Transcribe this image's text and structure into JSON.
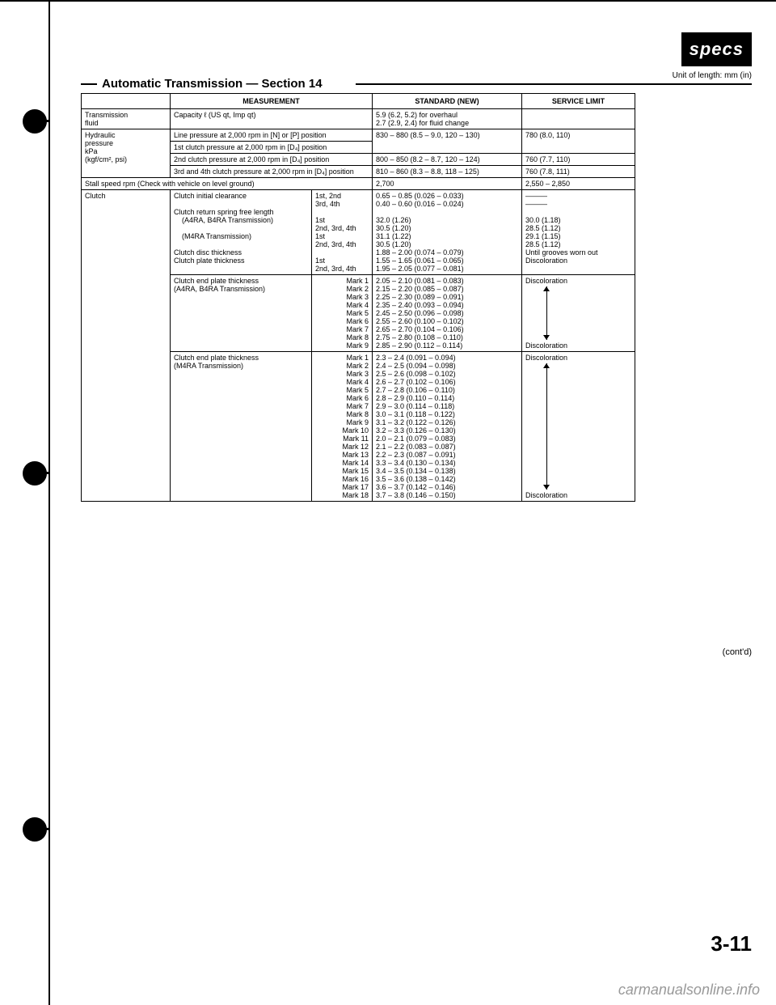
{
  "badge": "specs",
  "unit_label": "Unit of length: mm (in)",
  "section_title": "Automatic Transmission — Section 14",
  "header": {
    "measurement": "MEASUREMENT",
    "standard": "STANDARD (NEW)",
    "service_limit": "SERVICE LIMIT"
  },
  "rows": {
    "trans_fluid_label": "Transmission\nfluid",
    "trans_fluid_meas": "Capacity   ℓ (US qt, Imp qt)",
    "trans_fluid_std": "5.9 (6.2, 5.2) for overhaul\n2.7 (2.9, 2.4) for fluid change",
    "hyd_label": "Hydraulic\npressure\nkPa\n(kgf/cm², psi)",
    "hyd_line_meas": "Line pressure at 2,000 rpm in [N] or [P] position",
    "hyd_line_std": "830 – 880 (8.5 – 9.0, 120 – 130)",
    "hyd_line_lim": "780 (8.0, 110)",
    "hyd_1st_meas": "1st clutch pressure at 2,000 rpm in [D₄] position",
    "hyd_2nd_meas": "2nd clutch pressure at 2,000 rpm in [D₄] position",
    "hyd_2nd_std": "800 – 850 (8.2 – 8.7, 120 – 124)",
    "hyd_2nd_lim": "760 (7.7, 110)",
    "hyd_34_meas": "3rd and 4th clutch pressure at 2,000 rpm in [D₄] position",
    "hyd_34_std": "810 – 860 (8.3 – 8.8, 118 – 125)",
    "hyd_34_lim": "760 (7.8, 111)",
    "stall_label": "Stall speed rpm (Check with vehicle on level ground)",
    "stall_std": "2,700",
    "stall_lim": "2,550 – 2,850",
    "clutch_label": "Clutch"
  },
  "clutch_block1": {
    "meas_lines": [
      "Clutch initial clearance",
      "",
      "Clutch return spring free length",
      "    (A4RA, B4RA Transmission)",
      "",
      "    (M4RA Transmission)",
      "",
      "Clutch disc thickness",
      "Clutch plate thickness"
    ],
    "sub_lines": [
      "1st, 2nd",
      "3rd, 4th",
      "",
      "1st",
      "2nd, 3rd, 4th",
      "1st",
      "2nd, 3rd, 4th",
      "",
      "1st",
      "2nd, 3rd, 4th"
    ],
    "std_lines": [
      "0.65 – 0.85 (0.026 – 0.033)",
      "0.40 – 0.60 (0.016 – 0.024)",
      "",
      "32.0 (1.26)",
      "30.5 (1.20)",
      "31.1 (1.22)",
      "30.5 (1.20)",
      "1.88 – 2.00 (0.074 – 0.079)",
      "1.55 – 1.65 (0.061 – 0.065)",
      "1.95 – 2.05 (0.077 – 0.081)"
    ],
    "lim_lines": [
      "———",
      "———",
      "",
      "30.0 (1.18)",
      "28.5 (1.12)",
      "29.1 (1.15)",
      "28.5 (1.12)",
      "Until grooves worn out",
      "Discoloration"
    ]
  },
  "clutch_block2": {
    "meas": "Clutch end plate thickness\n(A4RA, B4RA Transmission)",
    "marks": [
      "Mark 1",
      "Mark 2",
      "Mark 3",
      "Mark 4",
      "Mark 5",
      "Mark 6",
      "Mark 7",
      "Mark 8",
      "Mark 9"
    ],
    "std": [
      "2.05 – 2.10 (0.081 – 0.083)",
      "2.15 – 2.20 (0.085 – 0.087)",
      "2.25 – 2.30 (0.089 – 0.091)",
      "2.35 – 2.40 (0.093 – 0.094)",
      "2.45 – 2.50 (0.096 – 0.098)",
      "2.55 – 2.60 (0.100 – 0.102)",
      "2.65 – 2.70 (0.104 – 0.106)",
      "2.75 – 2.80 (0.108 – 0.110)",
      "2.85 – 2.90 (0.112 – 0.114)"
    ],
    "lim_top": "Discoloration",
    "lim_bot": "Discoloration"
  },
  "clutch_block3": {
    "meas": "Clutch end plate thickness\n(M4RA Transmission)",
    "marks": [
      "Mark 1",
      "Mark 2",
      "Mark 3",
      "Mark 4",
      "Mark 5",
      "Mark 6",
      "Mark 7",
      "Mark 8",
      "Mark 9",
      "Mark 10",
      "Mark 11",
      "Mark 12",
      "Mark 13",
      "Mark 14",
      "Mark 15",
      "Mark 16",
      "Mark 17",
      "Mark 18"
    ],
    "std": [
      "2.3 – 2.4 (0.091 – 0.094)",
      "2.4 – 2.5 (0.094 – 0.098)",
      "2.5 – 2.6 (0.098 – 0.102)",
      "2.6 – 2.7 (0.102 – 0.106)",
      "2.7 – 2.8 (0.106 – 0.110)",
      "2.8 – 2.9 (0.110 – 0.114)",
      "2.9 – 3.0 (0.114 – 0.118)",
      "3.0 – 3.1 (0.118 – 0.122)",
      "3.1 – 3.2 (0.122 – 0.126)",
      "3.2 – 3.3 (0.126 – 0.130)",
      "2.0 – 2.1 (0.079 – 0.083)",
      "2.1 – 2.2 (0.083 – 0.087)",
      "2.2 – 2.3 (0.087 – 0.091)",
      "3.3 – 3.4 (0.130 – 0.134)",
      "3.4 – 3.5 (0.134 – 0.138)",
      "3.5 – 3.6 (0.138 – 0.142)",
      "3.6 – 3.7 (0.142 – 0.146)",
      "3.7 – 3.8 (0.146 – 0.150)"
    ],
    "lim_top": "Discoloration",
    "lim_bot": "Discoloration"
  },
  "contd": "(cont'd)",
  "page_num": "3-11",
  "watermark": "carmanualsonline.info"
}
